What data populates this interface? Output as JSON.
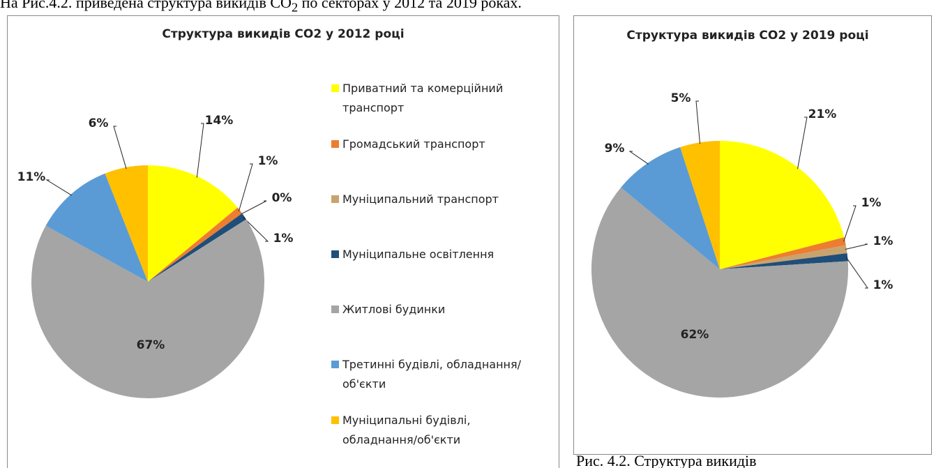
{
  "intro": {
    "text_before": "На Рис.4.2. приведена структура викидів CO",
    "subscript": "2",
    "text_after": " по секторах у 2012 та 2019 роках."
  },
  "caption": "Рис. 4.2. Структура викидів",
  "chart_data": [
    {
      "type": "pie",
      "title": "Структура викидів CO2 у 2012 році",
      "categories": [
        "Приватний та комерційний транспорт",
        "Громадський транспорт",
        "Муніципальний транспорт",
        "Муніципальне освітлення",
        "Житлові будинки",
        "Третинні будівлі, обладнання/об'єкти",
        "Муніципальні будівлі, обладнання/об'єкти"
      ],
      "values": [
        14,
        1,
        0,
        1,
        67,
        11,
        6
      ],
      "value_labels": [
        "14%",
        "1%",
        "0%",
        "1%",
        "67%",
        "11%",
        "6%"
      ],
      "colors": [
        "#ffff00",
        "#ed7d31",
        "#c9a36e",
        "#1f4e79",
        "#a5a5a5",
        "#5b9bd5",
        "#ffc000"
      ],
      "legend": "right"
    },
    {
      "type": "pie",
      "title": "Структура викидів CO2 у 2019 році",
      "categories": [
        "Приватний та комерційний транспорт",
        "Громадський транспорт",
        "Муніципальний транспорт",
        "Муніципальне освітлення",
        "Житлові будинки",
        "Третинні будівлі, обладнання/об'єкти",
        "Муніципальні будівлі, обладнання/об'єкти"
      ],
      "values": [
        21,
        1,
        1,
        1,
        62,
        9,
        5
      ],
      "value_labels": [
        "21%",
        "1%",
        "1%",
        "1%",
        "62%",
        "9%",
        "5%"
      ],
      "colors": [
        "#ffff00",
        "#ed7d31",
        "#c9a36e",
        "#1f4e79",
        "#a5a5a5",
        "#5b9bd5",
        "#ffc000"
      ],
      "legend": "none"
    }
  ]
}
